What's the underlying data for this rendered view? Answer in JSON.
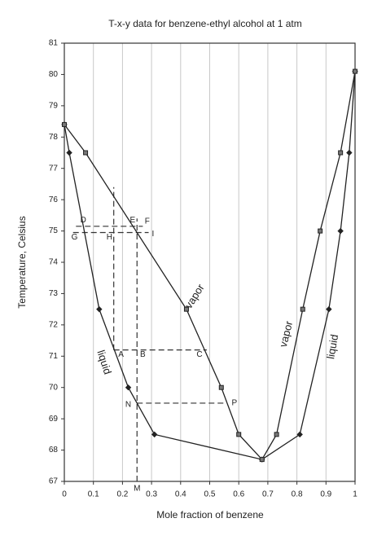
{
  "chart_data": {
    "type": "line",
    "title": "T-x-y data for benzene-ethyl alcohol at 1 atm",
    "x_label": "Mole fraction of benzene",
    "y_label": "Temperature, Celsius",
    "xlim": [
      0,
      1
    ],
    "ylim": [
      67,
      81
    ],
    "xticks": [
      0,
      0.1,
      0.2,
      0.3,
      0.4,
      0.5,
      0.6,
      0.7,
      0.8,
      0.9,
      1
    ],
    "yticks": [
      67,
      68,
      69,
      70,
      71,
      72,
      73,
      74,
      75,
      76,
      77,
      78,
      79,
      80,
      81
    ],
    "grid": "x",
    "series": [
      {
        "color": "#222222",
        "marker": "diamond",
        "x": [
          0,
          0.017,
          0.12,
          0.22,
          0.31,
          0.68,
          0.81,
          0.91,
          0.95,
          0.98,
          1
        ],
        "values": [
          78.4,
          77.5,
          72.5,
          70,
          68.5,
          67.7,
          68.5,
          72.5,
          75,
          77.5,
          80.1
        ]
      },
      {
        "color": "#222222",
        "marker": "square",
        "x": [
          0,
          0.073,
          0.42,
          0.54,
          0.6,
          0.68,
          0.73,
          0.82,
          0.88,
          0.95,
          1
        ],
        "values": [
          78.4,
          77.5,
          72.5,
          70,
          68.5,
          67.7,
          68.5,
          72.5,
          75,
          77.5,
          80.1
        ]
      }
    ],
    "guides": [
      {
        "x": [
          0.17,
          0.17
        ],
        "values": [
          71.2,
          76.4
        ]
      },
      {
        "x": [
          0.17,
          0.49
        ],
        "values": [
          71.2,
          71.2
        ]
      },
      {
        "x": [
          0.04,
          0.27
        ],
        "values": [
          75.15,
          75.15
        ]
      },
      {
        "x": [
          0.03,
          0.29
        ],
        "values": [
          74.95,
          74.95
        ]
      },
      {
        "x": [
          0.25,
          0.25
        ],
        "values": [
          67,
          75.4
        ]
      },
      {
        "x": [
          0.25,
          0.55
        ],
        "values": [
          69.5,
          69.5
        ]
      }
    ],
    "annotations": [
      {
        "text": "D",
        "x": 0.065,
        "y": 75.35
      },
      {
        "text": "E",
        "x": 0.235,
        "y": 75.35
      },
      {
        "text": "F",
        "x": 0.285,
        "y": 75.3
      },
      {
        "text": "G",
        "x": 0.035,
        "y": 74.8
      },
      {
        "text": "H",
        "x": 0.155,
        "y": 74.8
      },
      {
        "text": "I",
        "x": 0.305,
        "y": 74.9
      },
      {
        "text": "A",
        "x": 0.195,
        "y": 71.05
      },
      {
        "text": "B",
        "x": 0.27,
        "y": 71.05
      },
      {
        "text": "C",
        "x": 0.465,
        "y": 71.05
      },
      {
        "text": "N",
        "x": 0.22,
        "y": 69.45
      },
      {
        "text": "P",
        "x": 0.585,
        "y": 69.5
      },
      {
        "text": "M",
        "x": 0.25,
        "y": 66.77
      },
      {
        "text": "vapor",
        "x": 0.45,
        "y": 72.9
      },
      {
        "text": "liquid",
        "x": 0.135,
        "y": 70.8
      },
      {
        "text": "vapor",
        "x": 0.765,
        "y": 71.7
      },
      {
        "text": "liquid",
        "x": 0.925,
        "y": 71.3
      }
    ]
  }
}
